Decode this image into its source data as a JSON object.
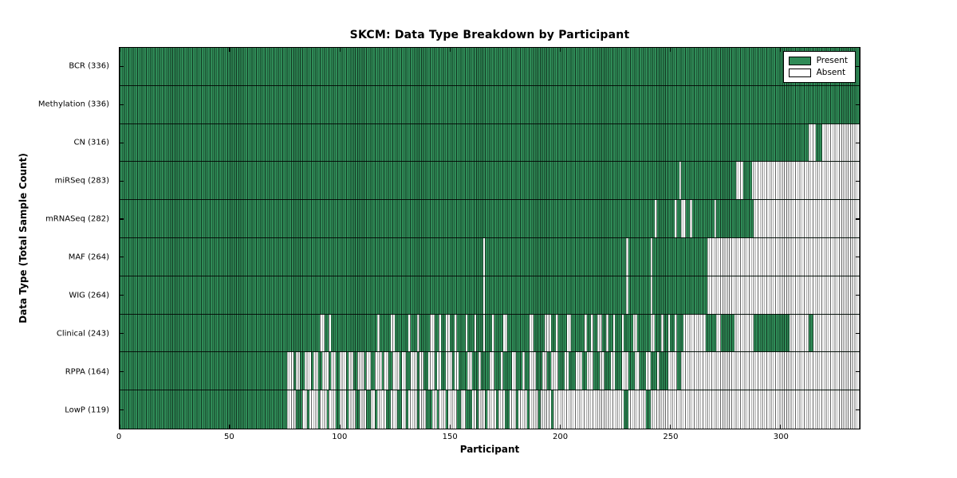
{
  "chart_data": {
    "type": "heatmap",
    "title": "SKCM: Data Type Breakdown by Participant",
    "xlabel": "Participant",
    "ylabel": "Data Type (Total Sample Count)",
    "x_range": [
      0,
      336
    ],
    "x_ticks": [
      0,
      50,
      100,
      150,
      200,
      250,
      300
    ],
    "grid": false,
    "legend": {
      "position": "upper right",
      "items": [
        {
          "label": "Present",
          "state": "present"
        },
        {
          "label": "Absent",
          "state": "absent"
        }
      ]
    },
    "colors": {
      "present": "#2f8b57",
      "absent": "#ffffff"
    },
    "rows": [
      {
        "name": "bcr",
        "label": "BCR (336)",
        "total": 336,
        "absent_ranges": []
      },
      {
        "name": "methylation",
        "label": "Methylation (336)",
        "total": 336,
        "absent_ranges": []
      },
      {
        "name": "cn",
        "label": "CN (316)",
        "total": 316,
        "absent_ranges": [
          [
            313,
            316
          ],
          [
            319,
            336
          ]
        ]
      },
      {
        "name": "mirseq",
        "label": "miRSeq (283)",
        "total": 283,
        "absent_ranges": [
          [
            254,
            255
          ],
          [
            280,
            283
          ],
          [
            287,
            336
          ]
        ]
      },
      {
        "name": "mrnaseq",
        "label": "mRNASeq (282)",
        "total": 282,
        "absent_ranges": [
          [
            243,
            244
          ],
          [
            252,
            253
          ],
          [
            255,
            257
          ],
          [
            259,
            260
          ],
          [
            270,
            271
          ],
          [
            288,
            336
          ]
        ]
      },
      {
        "name": "maf",
        "label": "MAF (264)",
        "total": 264,
        "absent_ranges": [
          [
            165,
            166
          ],
          [
            230,
            231
          ],
          [
            241,
            242
          ],
          [
            267,
            336
          ]
        ]
      },
      {
        "name": "wig",
        "label": "WIG (264)",
        "total": 264,
        "absent_ranges": [
          [
            165,
            166
          ],
          [
            230,
            231
          ],
          [
            241,
            242
          ],
          [
            267,
            336
          ]
        ]
      },
      {
        "name": "clinical",
        "label": "Clinical (243)",
        "total": 243,
        "absent_ranges": [
          [
            91,
            93
          ],
          [
            95,
            96
          ],
          [
            117,
            118
          ],
          [
            123,
            125
          ],
          [
            131,
            132
          ],
          [
            135,
            136
          ],
          [
            141,
            143
          ],
          [
            145,
            146
          ],
          [
            148,
            150
          ],
          [
            152,
            153
          ],
          [
            157,
            158
          ],
          [
            161,
            162
          ],
          [
            165,
            166
          ],
          [
            169,
            170
          ],
          [
            174,
            176
          ],
          [
            186,
            188
          ],
          [
            193,
            196
          ],
          [
            198,
            199
          ],
          [
            203,
            205
          ],
          [
            211,
            212
          ],
          [
            214,
            215
          ],
          [
            217,
            219
          ],
          [
            221,
            222
          ],
          [
            224,
            225
          ],
          [
            228,
            229
          ],
          [
            233,
            235
          ],
          [
            241,
            243
          ],
          [
            246,
            247
          ],
          [
            249,
            250
          ],
          [
            252,
            253
          ],
          [
            256,
            266
          ],
          [
            271,
            273
          ],
          [
            279,
            288
          ],
          [
            304,
            313
          ],
          [
            315,
            336
          ]
        ]
      },
      {
        "name": "rppa",
        "label": "RPPA (164)",
        "total": 164,
        "absent_ranges": [
          [
            76,
            79
          ],
          [
            80,
            82
          ],
          [
            84,
            87
          ],
          [
            88,
            90
          ],
          [
            92,
            95
          ],
          [
            96,
            98
          ],
          [
            100,
            103
          ],
          [
            104,
            106
          ],
          [
            108,
            111
          ],
          [
            112,
            114
          ],
          [
            116,
            119
          ],
          [
            120,
            122
          ],
          [
            124,
            127
          ],
          [
            128,
            130
          ],
          [
            132,
            135
          ],
          [
            136,
            138
          ],
          [
            140,
            143
          ],
          [
            144,
            146
          ],
          [
            148,
            151
          ],
          [
            152,
            154
          ],
          [
            158,
            160
          ],
          [
            163,
            164
          ],
          [
            168,
            170
          ],
          [
            173,
            174
          ],
          [
            178,
            180
          ],
          [
            183,
            184
          ],
          [
            186,
            189
          ],
          [
            192,
            194
          ],
          [
            196,
            199
          ],
          [
            202,
            204
          ],
          [
            207,
            210
          ],
          [
            212,
            215
          ],
          [
            218,
            220
          ],
          [
            223,
            225
          ],
          [
            228,
            231
          ],
          [
            234,
            236
          ],
          [
            239,
            241
          ],
          [
            244,
            245
          ],
          [
            249,
            253
          ],
          [
            255,
            336
          ]
        ]
      },
      {
        "name": "lowp",
        "label": "LowP (119)",
        "total": 119,
        "absent_ranges": [
          [
            76,
            80
          ],
          [
            83,
            85
          ],
          [
            86,
            90
          ],
          [
            91,
            94
          ],
          [
            95,
            98
          ],
          [
            100,
            103
          ],
          [
            104,
            107
          ],
          [
            109,
            112
          ],
          [
            114,
            116
          ],
          [
            117,
            121
          ],
          [
            123,
            126
          ],
          [
            128,
            130
          ],
          [
            131,
            135
          ],
          [
            136,
            139
          ],
          [
            142,
            144
          ],
          [
            145,
            148
          ],
          [
            149,
            153
          ],
          [
            155,
            157
          ],
          [
            160,
            162
          ],
          [
            163,
            166
          ],
          [
            167,
            171
          ],
          [
            172,
            175
          ],
          [
            177,
            180
          ],
          [
            181,
            185
          ],
          [
            186,
            190
          ],
          [
            191,
            196
          ],
          [
            197,
            229
          ],
          [
            231,
            239
          ],
          [
            241,
            336
          ]
        ]
      }
    ]
  }
}
